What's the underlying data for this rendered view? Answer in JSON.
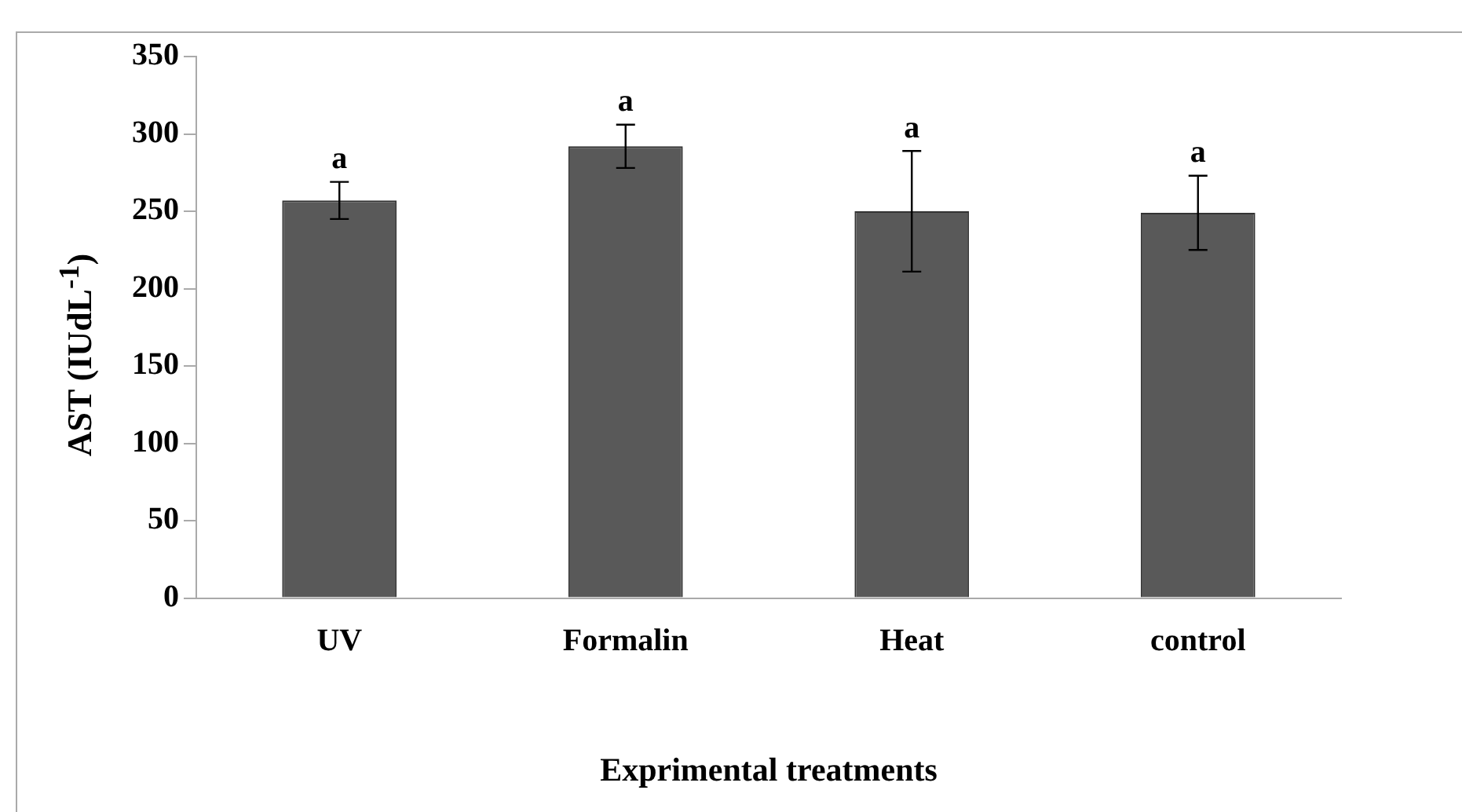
{
  "chart_data": {
    "type": "bar",
    "xlabel": "Exprimental treatments",
    "ylabel": "AST (IUdL$^{-1}$)",
    "categories": [
      "UV",
      "Formalin",
      "Heat",
      "control"
    ],
    "values": [
      257,
      292,
      250,
      249
    ],
    "errors": [
      12,
      14,
      39,
      24
    ],
    "color": "#595959",
    "ylim": [
      0,
      350
    ],
    "yticks": [
      0,
      50,
      100,
      150,
      200,
      250,
      300,
      350
    ],
    "grid": false,
    "legend": false,
    "annotations": [
      {
        "text": "a",
        "x": "UV",
        "y": 269
      },
      {
        "text": "a",
        "x": "Formalin",
        "y": 306
      },
      {
        "text": "a",
        "x": "Heat",
        "y": 289
      },
      {
        "text": "a",
        "x": "control",
        "y": 273
      }
    ]
  }
}
